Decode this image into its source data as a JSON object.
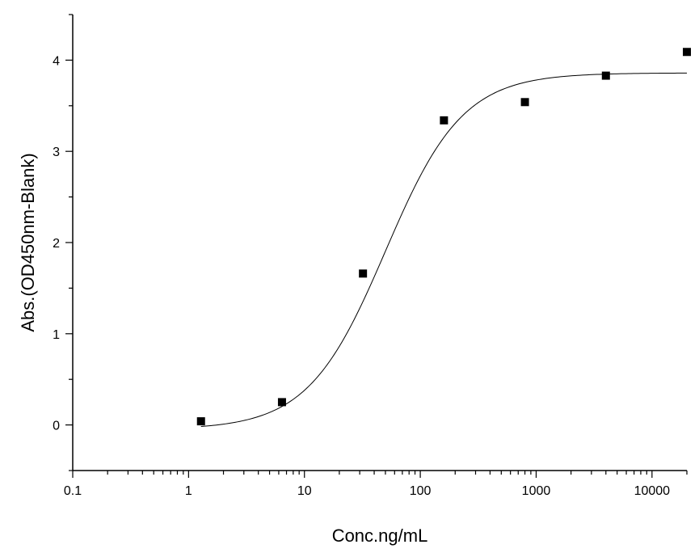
{
  "chart_data": {
    "type": "scatter",
    "xlabel": "Conc.ng/mL",
    "ylabel": "Abs.(OD450nm-Blank)",
    "x_scale": "log",
    "xlim": [
      0.1,
      20000
    ],
    "ylim": [
      -0.5,
      4.5
    ],
    "x_ticks": [
      0.1,
      1,
      10,
      100,
      1000,
      10000
    ],
    "x_tick_labels": [
      "0.1",
      "1",
      "10",
      "100",
      "1000",
      "10000"
    ],
    "y_ticks": [
      0,
      1,
      2,
      3,
      4
    ],
    "y_tick_labels": [
      "0",
      "1",
      "2",
      "3",
      "4"
    ],
    "grid": false,
    "series": [
      {
        "marker": "square",
        "color": "#000000",
        "x": [
          1.28,
          6.4,
          32,
          160,
          800,
          4000,
          20000
        ],
        "y": [
          0.04,
          0.25,
          1.66,
          3.34,
          3.54,
          3.83,
          4.09
        ]
      }
    ],
    "fit_curve": {
      "model": "4PL",
      "bottom": -0.05,
      "top": 3.86,
      "ec50": 50,
      "hill": 1.3,
      "x_range": [
        1.28,
        20000
      ],
      "color": "#000000"
    }
  }
}
